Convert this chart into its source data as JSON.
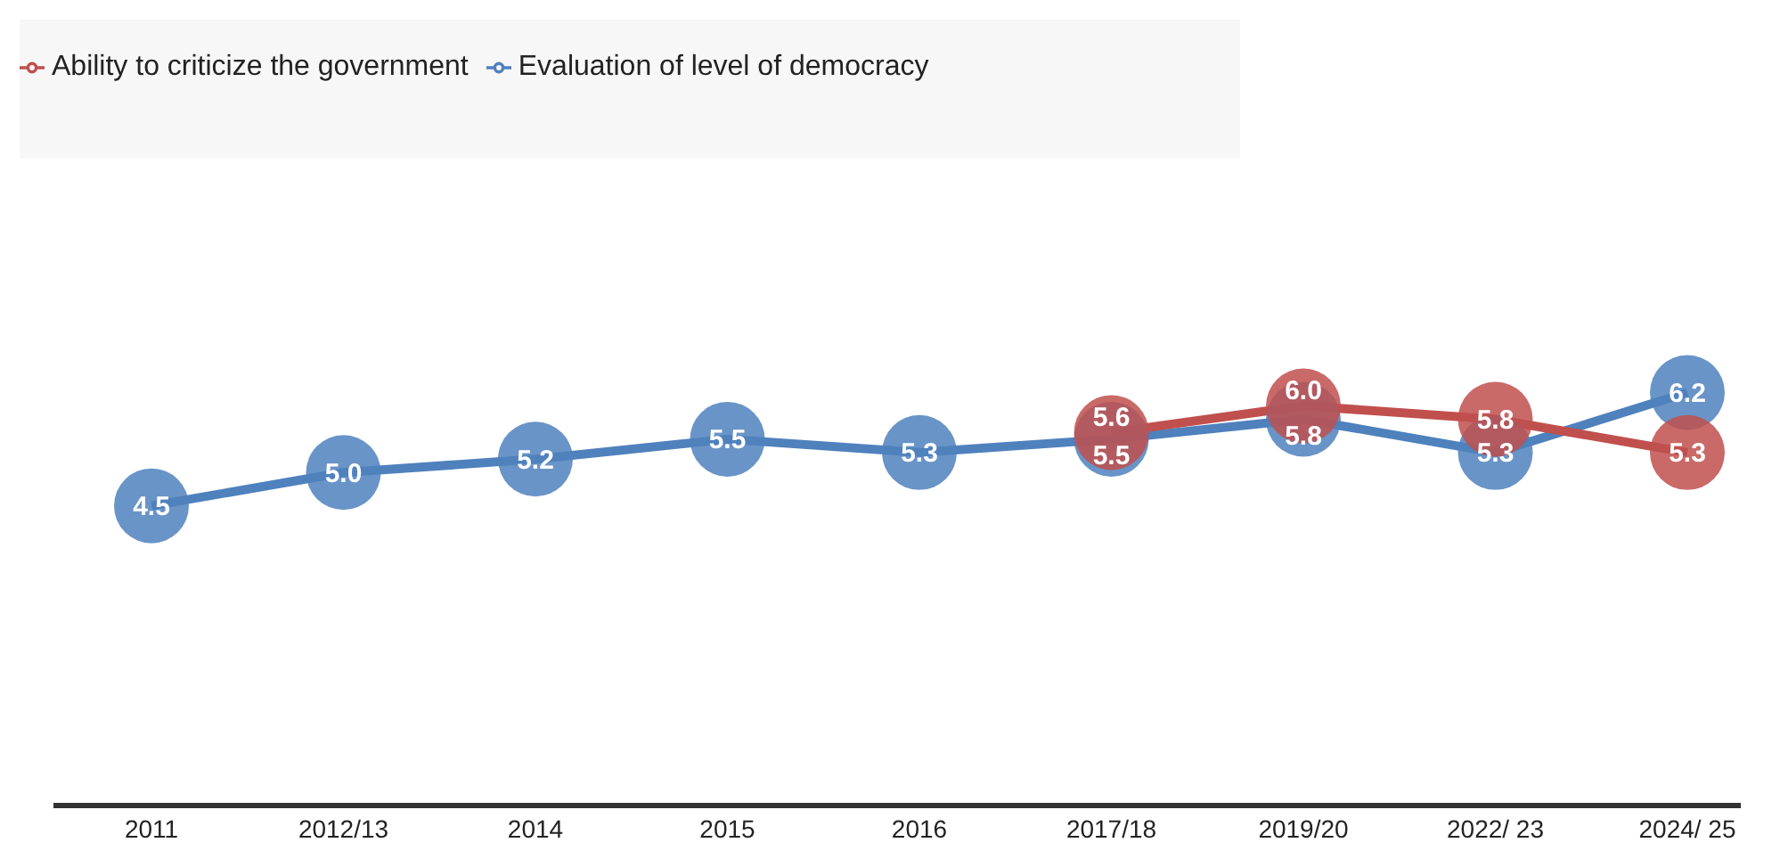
{
  "chart_data": {
    "type": "line",
    "categories": [
      "2011",
      "2012/13",
      "2014",
      "2015",
      "2016",
      "2017/18",
      "2019/20",
      "2022/ 23",
      "2024/ 25"
    ],
    "series": [
      {
        "name": "Evaluation of level of democracy",
        "color": "#4f81bd",
        "values": [
          4.5,
          5.0,
          5.2,
          5.5,
          5.3,
          5.5,
          5.8,
          5.3,
          6.2
        ],
        "value_labels": [
          "4.5",
          "5.0",
          "5.2",
          "5.5",
          "5.3",
          "5.5",
          "5.8",
          "5.3",
          "6.2"
        ]
      },
      {
        "name": "Ability to criticize the government",
        "color": "#c0504d",
        "values": [
          null,
          null,
          null,
          null,
          null,
          5.6,
          6.0,
          5.8,
          5.3
        ],
        "value_labels": [
          null,
          null,
          null,
          null,
          null,
          "5.6",
          "6.0",
          "5.8",
          "5.3"
        ]
      }
    ],
    "tick_labels": "x",
    "legend": "top left",
    "marker": "circle",
    "line_style": "solid"
  }
}
